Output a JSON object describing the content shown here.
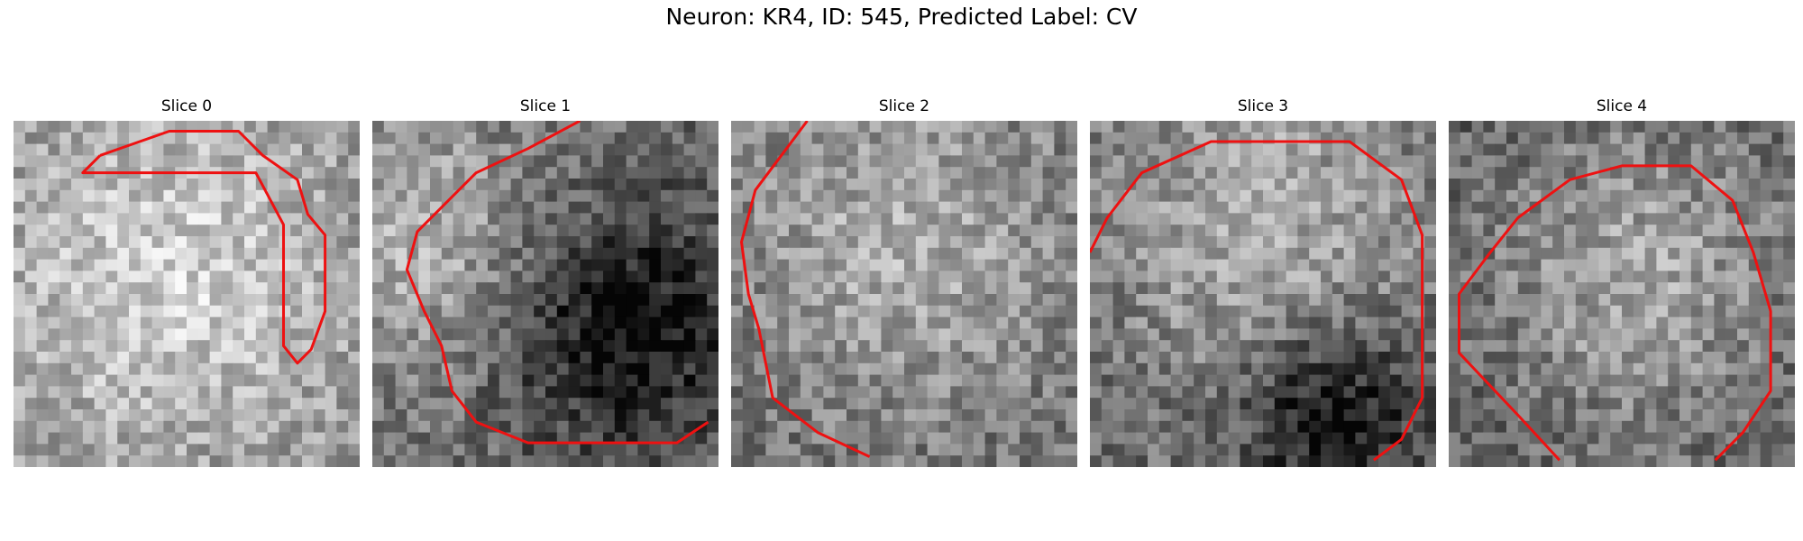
{
  "figure": {
    "title": "Neuron: KR4, ID: 545, Predicted Label: CV"
  },
  "panels": [
    {
      "title": "Slice 0",
      "seed": 11,
      "mean": 0.72,
      "bright": [
        0.45,
        0.45,
        0.55
      ],
      "dark": [],
      "contour": [
        [
          0.25,
          0.1
        ],
        [
          0.45,
          0.03
        ],
        [
          0.65,
          0.03
        ],
        [
          0.72,
          0.1
        ],
        [
          0.82,
          0.17
        ],
        [
          0.85,
          0.27
        ],
        [
          0.9,
          0.33
        ],
        [
          0.9,
          0.55
        ],
        [
          0.86,
          0.66
        ],
        [
          0.82,
          0.7
        ],
        [
          0.78,
          0.65
        ],
        [
          0.78,
          0.3
        ],
        [
          0.7,
          0.15
        ],
        [
          0.2,
          0.15
        ],
        [
          0.25,
          0.1
        ]
      ]
    },
    {
      "title": "Slice 1",
      "seed": 23,
      "mean": 0.6,
      "bright": [
        0.15,
        0.35,
        0.4
      ],
      "dark": [
        [
          0.72,
          0.6,
          0.35
        ]
      ],
      "contour": [
        [
          0.6,
          0.0
        ],
        [
          0.45,
          0.08
        ],
        [
          0.3,
          0.15
        ],
        [
          0.13,
          0.32
        ],
        [
          0.1,
          0.43
        ],
        [
          0.15,
          0.55
        ],
        [
          0.2,
          0.65
        ],
        [
          0.23,
          0.78
        ],
        [
          0.3,
          0.87
        ],
        [
          0.45,
          0.93
        ],
        [
          0.65,
          0.93
        ],
        [
          0.88,
          0.93
        ],
        [
          0.97,
          0.87
        ]
      ]
    },
    {
      "title": "Slice 2",
      "seed": 37,
      "mean": 0.58,
      "bright": [
        0.5,
        0.35,
        0.55
      ],
      "dark": [],
      "contour": [
        [
          0.22,
          0.0
        ],
        [
          0.07,
          0.2
        ],
        [
          0.03,
          0.35
        ],
        [
          0.05,
          0.5
        ],
        [
          0.08,
          0.6
        ],
        [
          0.12,
          0.8
        ],
        [
          0.25,
          0.9
        ],
        [
          0.4,
          0.97
        ]
      ]
    },
    {
      "title": "Slice 3",
      "seed": 41,
      "mean": 0.58,
      "bright": [
        0.5,
        0.28,
        0.5
      ],
      "dark": [
        [
          0.7,
          0.85,
          0.25
        ]
      ],
      "contour": [
        [
          0.0,
          0.38
        ],
        [
          0.05,
          0.28
        ],
        [
          0.15,
          0.15
        ],
        [
          0.35,
          0.06
        ],
        [
          0.75,
          0.06
        ],
        [
          0.9,
          0.17
        ],
        [
          0.96,
          0.33
        ],
        [
          0.96,
          0.8
        ],
        [
          0.9,
          0.92
        ],
        [
          0.82,
          0.98
        ]
      ]
    },
    {
      "title": "Slice 4",
      "seed": 53,
      "mean": 0.55,
      "bright": [
        0.55,
        0.45,
        0.45
      ],
      "dark": [],
      "contour": [
        [
          0.32,
          0.98
        ],
        [
          0.2,
          0.85
        ],
        [
          0.03,
          0.67
        ],
        [
          0.03,
          0.5
        ],
        [
          0.12,
          0.38
        ],
        [
          0.2,
          0.28
        ],
        [
          0.35,
          0.17
        ],
        [
          0.5,
          0.13
        ],
        [
          0.7,
          0.13
        ],
        [
          0.82,
          0.23
        ],
        [
          0.88,
          0.38
        ],
        [
          0.93,
          0.55
        ],
        [
          0.93,
          0.78
        ],
        [
          0.85,
          0.9
        ],
        [
          0.77,
          0.98
        ]
      ]
    }
  ]
}
